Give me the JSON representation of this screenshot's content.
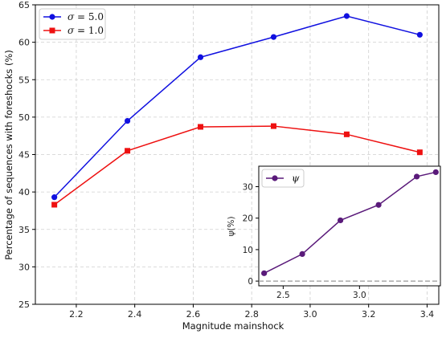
{
  "chart_data": [
    {
      "type": "line",
      "title": "",
      "xlabel": "Magnitude mainshock",
      "ylabel": "Percentage of sequences with foreshocks (%)",
      "x": [
        2.125,
        2.375,
        2.625,
        2.875,
        3.125,
        3.375
      ],
      "xlim": [
        2.06,
        3.44
      ],
      "ylim": [
        25,
        65
      ],
      "xticks": [
        2.2,
        2.4,
        2.6,
        2.8,
        3.0,
        3.2,
        3.4
      ],
      "xtick_labels": [
        "2.2",
        "2.4",
        "2.6",
        "2.8",
        "3.0",
        "3.2",
        "3.4"
      ],
      "yticks": [
        25,
        30,
        35,
        40,
        45,
        50,
        55,
        60,
        65
      ],
      "ytick_labels": [
        "25",
        "30",
        "35",
        "40",
        "45",
        "50",
        "55",
        "60",
        "65"
      ],
      "grid": true,
      "legend_position": "top-left",
      "series": [
        {
          "name": "σ = 5.0",
          "legend_symbol": "σ",
          "legend_value": " = 5.0",
          "color": "#1010e0",
          "marker": "circle",
          "values": [
            39.3,
            49.5,
            58.0,
            60.7,
            63.5,
            61.0
          ]
        },
        {
          "name": "σ = 1.0",
          "legend_symbol": "σ",
          "legend_value": " = 1.0",
          "color": "#ee1010",
          "marker": "square",
          "values": [
            38.3,
            45.5,
            48.7,
            48.8,
            47.7,
            45.3
          ]
        }
      ]
    },
    {
      "type": "line",
      "title": "",
      "xlabel": "",
      "ylabel": "ψ(%)",
      "x": [
        2.375,
        2.625,
        2.875,
        3.125,
        3.375,
        3.5
      ],
      "xlim": [
        2.34,
        3.53
      ],
      "ylim": [
        -1.5,
        36.5
      ],
      "xticks": [
        2.5,
        3.0
      ],
      "xtick_labels": [
        "2.5",
        "3.0"
      ],
      "yticks": [
        0,
        10,
        20,
        30
      ],
      "ytick_labels": [
        "0",
        "10",
        "20",
        "30"
      ],
      "legend_position": "top-left",
      "reference_line": 0,
      "reference_color": "#999999",
      "series": [
        {
          "name": "ψ",
          "color": "#5a1a7a",
          "marker": "circle",
          "values": [
            2.5,
            8.6,
            19.3,
            24.2,
            33.2,
            34.6
          ]
        }
      ]
    }
  ]
}
